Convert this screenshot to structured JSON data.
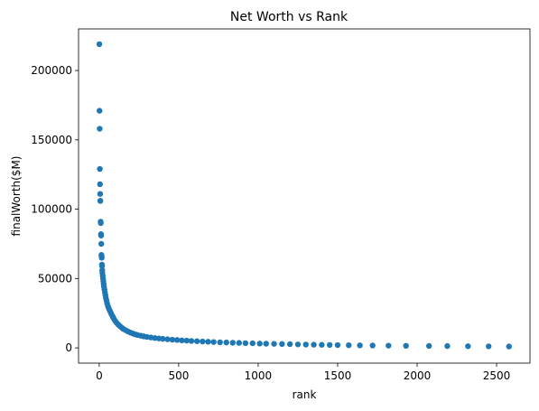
{
  "chart_data": {
    "type": "scatter",
    "title": "Net Worth vs Rank",
    "xlabel": "rank",
    "ylabel": "finalWorth($M)",
    "xlim": [
      -130,
      2710
    ],
    "ylim": [
      -11000,
      230000
    ],
    "x_ticks": [
      0,
      500,
      1000,
      1500,
      2000,
      2500
    ],
    "x_tick_labels": [
      "0",
      "500",
      "1000",
      "1500",
      "2000",
      "2500"
    ],
    "y_ticks": [
      0,
      50000,
      100000,
      150000,
      200000
    ],
    "y_tick_labels": [
      "0",
      "50000",
      "100000",
      "150000",
      "200000"
    ],
    "grid": false,
    "marker_color": "#1f77b4",
    "series": [
      {
        "points": [
          [
            1,
            219000
          ],
          [
            2,
            171000
          ],
          [
            3,
            158000
          ],
          [
            4,
            129000
          ],
          [
            5,
            118000
          ],
          [
            6,
            111000
          ],
          [
            7,
            106000
          ],
          [
            7,
            106000
          ],
          [
            9,
            91000
          ],
          [
            10,
            90000
          ],
          [
            11,
            82000
          ],
          [
            12,
            81000
          ],
          [
            13,
            75000
          ],
          [
            14,
            67000
          ],
          [
            15,
            66000
          ],
          [
            16,
            65000
          ],
          [
            17,
            60000
          ],
          [
            18,
            59000
          ],
          [
            19,
            56000
          ],
          [
            20,
            54000
          ],
          [
            22,
            52000
          ],
          [
            24,
            50000
          ],
          [
            26,
            48000
          ],
          [
            28,
            46000
          ],
          [
            30,
            44000
          ],
          [
            33,
            42000
          ],
          [
            36,
            40000
          ],
          [
            39,
            38000
          ],
          [
            42,
            36000
          ],
          [
            46,
            34000
          ],
          [
            50,
            32000
          ],
          [
            55,
            30000
          ],
          [
            60,
            28500
          ],
          [
            66,
            27000
          ],
          [
            72,
            25500
          ],
          [
            78,
            24000
          ],
          [
            85,
            22500
          ],
          [
            92,
            21000
          ],
          [
            100,
            19500
          ],
          [
            110,
            18000
          ],
          [
            120,
            16800
          ],
          [
            130,
            15700
          ],
          [
            140,
            14700
          ],
          [
            150,
            13800
          ],
          [
            165,
            12800
          ],
          [
            180,
            11900
          ],
          [
            195,
            11100
          ],
          [
            210,
            10400
          ],
          [
            225,
            9800
          ],
          [
            240,
            9300
          ],
          [
            260,
            8800
          ],
          [
            280,
            8300
          ],
          [
            300,
            7900
          ],
          [
            325,
            7500
          ],
          [
            350,
            7100
          ],
          [
            375,
            6800
          ],
          [
            400,
            6500
          ],
          [
            430,
            6200
          ],
          [
            460,
            5900
          ],
          [
            490,
            5700
          ],
          [
            520,
            5400
          ],
          [
            550,
            5200
          ],
          [
            580,
            5000
          ],
          [
            615,
            4800
          ],
          [
            650,
            4600
          ],
          [
            685,
            4400
          ],
          [
            720,
            4200
          ],
          [
            760,
            4000
          ],
          [
            800,
            3900
          ],
          [
            840,
            3700
          ],
          [
            880,
            3600
          ],
          [
            920,
            3400
          ],
          [
            965,
            3300
          ],
          [
            1010,
            3100
          ],
          [
            1050,
            3000
          ],
          [
            1100,
            2900
          ],
          [
            1150,
            2800
          ],
          [
            1200,
            2700
          ],
          [
            1250,
            2500
          ],
          [
            1300,
            2400
          ],
          [
            1350,
            2300
          ],
          [
            1400,
            2200
          ],
          [
            1450,
            2100
          ],
          [
            1500,
            2000
          ],
          [
            1570,
            1900
          ],
          [
            1640,
            1800
          ],
          [
            1720,
            1700
          ],
          [
            1820,
            1600
          ],
          [
            1930,
            1500
          ],
          [
            2075,
            1400
          ],
          [
            2190,
            1300
          ],
          [
            2320,
            1200
          ],
          [
            2450,
            1100
          ],
          [
            2578,
            1000
          ]
        ]
      }
    ]
  }
}
